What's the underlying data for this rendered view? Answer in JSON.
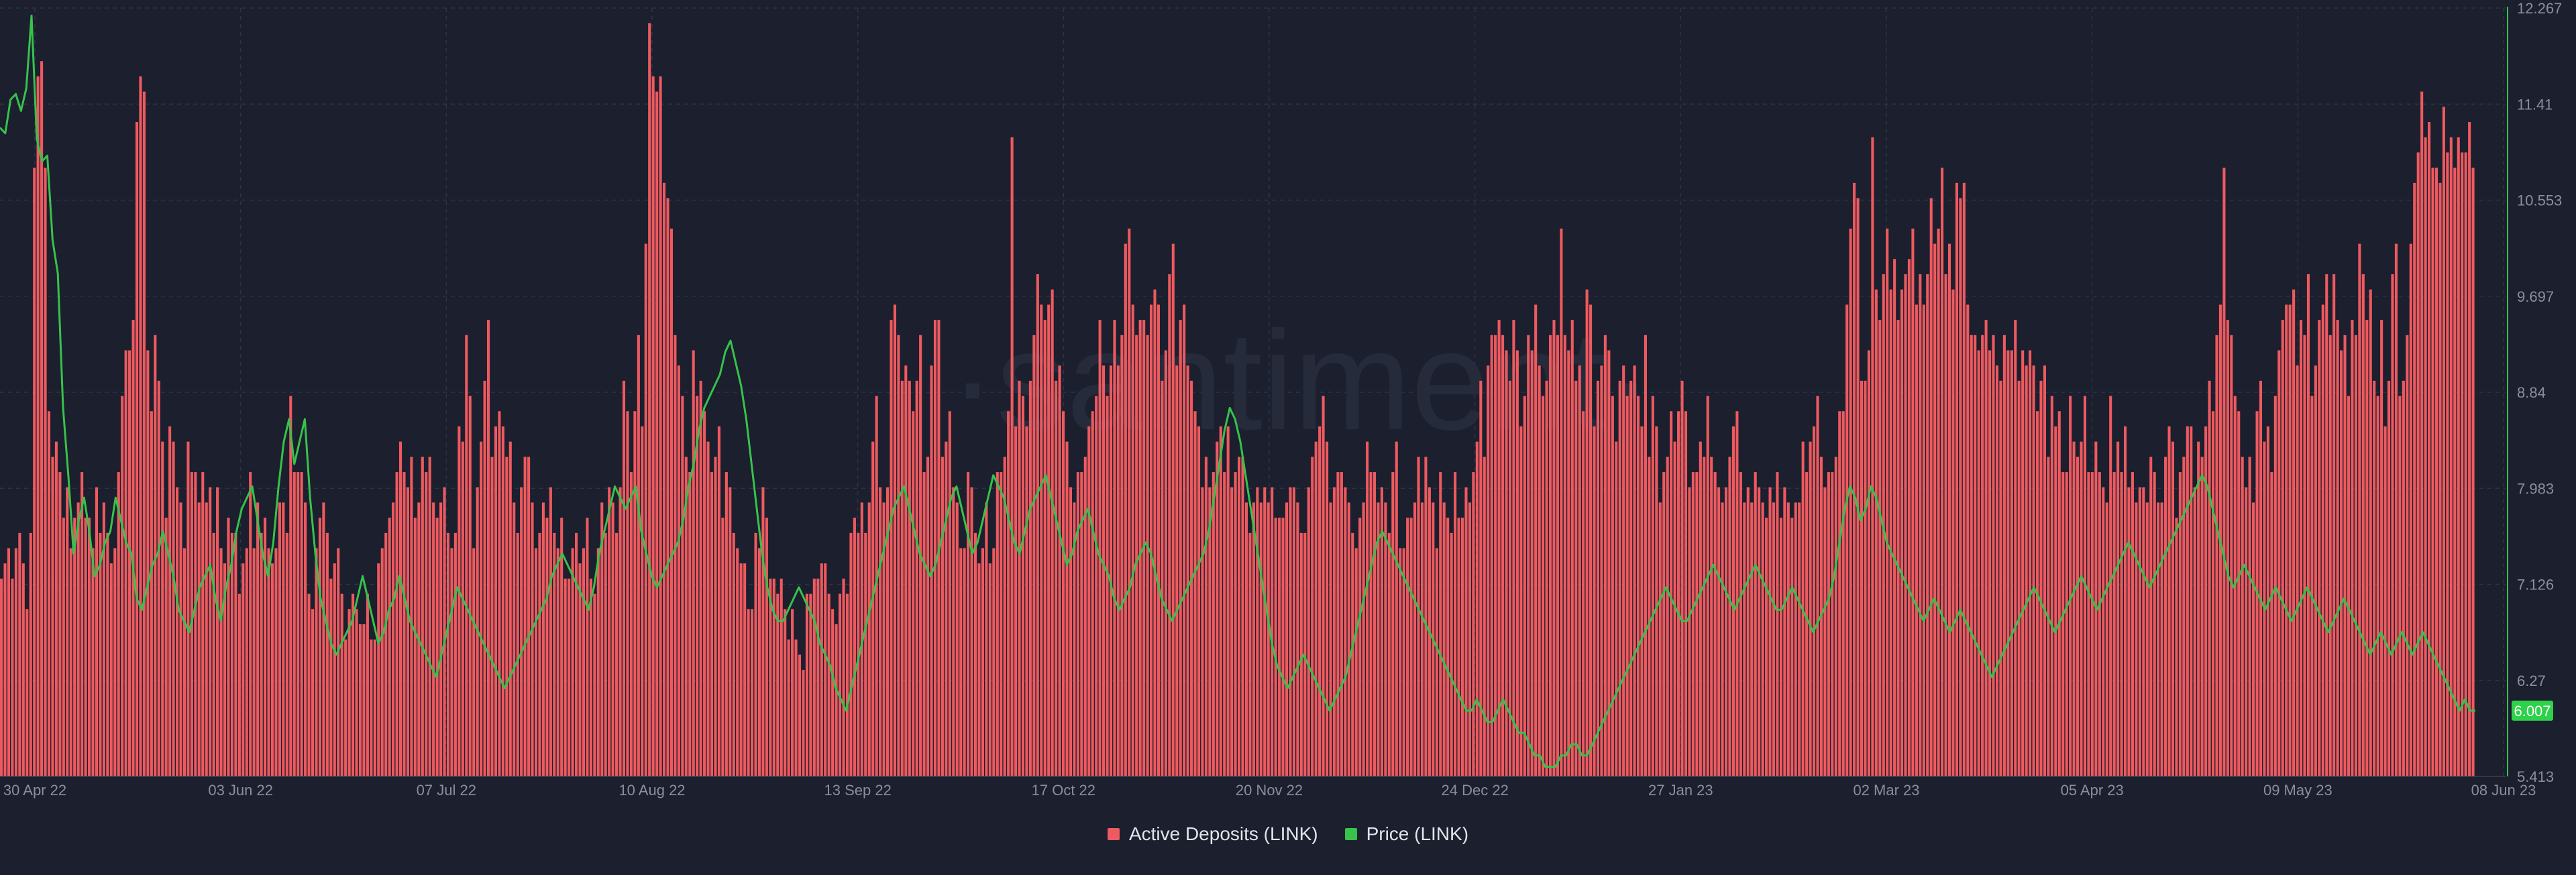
{
  "watermark": "·santiment·",
  "colors": {
    "background": "#1b1f2e",
    "grid": "#2e3345",
    "bars": "#ee5a5f",
    "price_line": "#37c24b",
    "axis_text": "#8a8f9f",
    "badge": "#2ed14a"
  },
  "chart_data": {
    "type": "bar",
    "x_tick_labels": [
      "30 Apr 22",
      "03 Jun 22",
      "07 Jul 22",
      "10 Aug 22",
      "13 Sep 22",
      "17 Oct 22",
      "20 Nov 22",
      "24 Dec 22",
      "27 Jan 23",
      "02 Mar 23",
      "05 Apr 23",
      "09 May 23",
      "08 Jun 23"
    ],
    "y_tick_labels": [
      "12.267",
      "11.41",
      "10.553",
      "9.697",
      "8.84",
      "7.983",
      "7.126",
      "6.27",
      "5.413"
    ],
    "y_right_range": [
      5.413,
      12.267
    ],
    "current_price_label": "6.007",
    "grid": true,
    "legend_position": "bottom-center",
    "series": [
      {
        "name": "Active Deposits (LINK)",
        "type": "bar",
        "axis": "hidden",
        "values": [
          26,
          28,
          30,
          26,
          30,
          32,
          28,
          22,
          32,
          80,
          92,
          94,
          80,
          48,
          42,
          44,
          40,
          34,
          38,
          30,
          34,
          36,
          40,
          34,
          34,
          30,
          38,
          32,
          36,
          32,
          28,
          30,
          40,
          50,
          56,
          56,
          60,
          86,
          92,
          90,
          56,
          48,
          58,
          52,
          44,
          34,
          46,
          44,
          38,
          36,
          30,
          44,
          40,
          40,
          36,
          40,
          36,
          38,
          32,
          38,
          30,
          28,
          34,
          32,
          32,
          24,
          28,
          30,
          40,
          30,
          36,
          32,
          34,
          30,
          28,
          30,
          36,
          36,
          32,
          50,
          40,
          40,
          40,
          36,
          24,
          22,
          30,
          34,
          36,
          32,
          26,
          28,
          30,
          24,
          18,
          22,
          24,
          22,
          20,
          20,
          24,
          18,
          18,
          28,
          30,
          32,
          34,
          36,
          40,
          44,
          40,
          38,
          42,
          34,
          36,
          42,
          40,
          42,
          36,
          34,
          36,
          38,
          32,
          30,
          32,
          46,
          44,
          58,
          50,
          30,
          38,
          44,
          52,
          60,
          42,
          46,
          48,
          46,
          42,
          44,
          36,
          32,
          38,
          42,
          42,
          36,
          30,
          32,
          36,
          34,
          38,
          32,
          30,
          34,
          26,
          26,
          30,
          32,
          28,
          30,
          34,
          26,
          24,
          30,
          36,
          32,
          38,
          36,
          32,
          38,
          52,
          48,
          40,
          48,
          58,
          46,
          70,
          99,
          92,
          90,
          92,
          78,
          76,
          72,
          58,
          54,
          50,
          42,
          40,
          56,
          50,
          52,
          48,
          44,
          40,
          42,
          46,
          34,
          40,
          38,
          32,
          30,
          28,
          28,
          22,
          22,
          32,
          30,
          38,
          34,
          26,
          26,
          24,
          26,
          22,
          18,
          22,
          18,
          16,
          14,
          24,
          24,
          26,
          26,
          28,
          28,
          24,
          22,
          20,
          24,
          26,
          24,
          32,
          34,
          32,
          36,
          32,
          36,
          44,
          50,
          38,
          36,
          38,
          60,
          62,
          58,
          52,
          54,
          52,
          48,
          52,
          58,
          40,
          42,
          54,
          60,
          60,
          42,
          44,
          48,
          38,
          36,
          30,
          30,
          40,
          38,
          32,
          28,
          30,
          36,
          28,
          30,
          40,
          40,
          42,
          48,
          84,
          46,
          52,
          50,
          46,
          52,
          58,
          66,
          62,
          60,
          62,
          64,
          52,
          54,
          48,
          44,
          38,
          36,
          40,
          40,
          42,
          46,
          48,
          50,
          60,
          54,
          50,
          54,
          60,
          54,
          58,
          70,
          72,
          62,
          58,
          60,
          60,
          58,
          62,
          64,
          62,
          52,
          56,
          66,
          70,
          54,
          60,
          62,
          54,
          52,
          48,
          46,
          38,
          42,
          38,
          40,
          44,
          46,
          40,
          46,
          38,
          40,
          42,
          42,
          36,
          32,
          36,
          38,
          36,
          38,
          36,
          38,
          34,
          34,
          34,
          36,
          38,
          38,
          36,
          32,
          32,
          38,
          42,
          44,
          46,
          50,
          44,
          36,
          38,
          40,
          40,
          38,
          36,
          32,
          30,
          34,
          36,
          44,
          40,
          40,
          36,
          38,
          36,
          32,
          40,
          44,
          30,
          30,
          34,
          34,
          36,
          42,
          36,
          42,
          38,
          36,
          30,
          40,
          36,
          34,
          32,
          40,
          34,
          34,
          38,
          36,
          40,
          44,
          52,
          42,
          54,
          58,
          58,
          60,
          58,
          56,
          52,
          60,
          56,
          46,
          50,
          58,
          56,
          62,
          54,
          50,
          52,
          58,
          60,
          58,
          72,
          58,
          56,
          60,
          52,
          54,
          48,
          64,
          62,
          46,
          52,
          54,
          58,
          56,
          50,
          44,
          52,
          54,
          50,
          52,
          54,
          50,
          46,
          58,
          42,
          50,
          46,
          36,
          40,
          42,
          48,
          44,
          48,
          52,
          48,
          38,
          40,
          40,
          44,
          42,
          50,
          42,
          40,
          38,
          36,
          38,
          42,
          46,
          48,
          40,
          36,
          38,
          36,
          40,
          38,
          36,
          34,
          38,
          36,
          40,
          34,
          38,
          36,
          34,
          36,
          36,
          44,
          40,
          44,
          46,
          50,
          42,
          38,
          40,
          40,
          42,
          48,
          48,
          62,
          72,
          78,
          76,
          52,
          52,
          56,
          84,
          64,
          60,
          66,
          72,
          64,
          68,
          60,
          64,
          66,
          68,
          72,
          62,
          66,
          62,
          66,
          76,
          70,
          72,
          80,
          66,
          70,
          64,
          78,
          76,
          78,
          62,
          58,
          58,
          56,
          58,
          60,
          56,
          58,
          54,
          52,
          58,
          56,
          56,
          60,
          52,
          56,
          54,
          56,
          54,
          48,
          52,
          54,
          42,
          50,
          46,
          48,
          40,
          40,
          50,
          44,
          42,
          44,
          50,
          40,
          40,
          44,
          40,
          38,
          36,
          50,
          40,
          44,
          40,
          46,
          38,
          40,
          36,
          38,
          38,
          36,
          42,
          40,
          36,
          36,
          42,
          46,
          44,
          34,
          40,
          42,
          46,
          46,
          38,
          44,
          42,
          46,
          52,
          48,
          58,
          62,
          80,
          60,
          58,
          50,
          48,
          42,
          38,
          42,
          36,
          48,
          52,
          44,
          46,
          40,
          50,
          56,
          60,
          62,
          62,
          64,
          54,
          60,
          58,
          66,
          50,
          54,
          60,
          62,
          66,
          58,
          66,
          60,
          56,
          58,
          50,
          60,
          58,
          70,
          66,
          60,
          64,
          52,
          50,
          60,
          46,
          52,
          66,
          70,
          50,
          52,
          58,
          70,
          78,
          82,
          90,
          84,
          86,
          80,
          80,
          78,
          88,
          82,
          84,
          80,
          84,
          82,
          82,
          86,
          80
        ]
      },
      {
        "name": "Price (LINK)",
        "type": "line",
        "axis": "right",
        "values": [
          11.2,
          11.15,
          11.45,
          11.5,
          11.35,
          11.55,
          12.2,
          11.1,
          10.9,
          10.95,
          10.2,
          9.9,
          8.7,
          8.1,
          7.4,
          7.7,
          7.9,
          7.6,
          7.2,
          7.3,
          7.5,
          7.6,
          7.9,
          7.7,
          7.5,
          7.4,
          7.0,
          6.9,
          7.1,
          7.3,
          7.4,
          7.6,
          7.4,
          7.2,
          6.9,
          6.8,
          6.7,
          6.9,
          7.1,
          7.2,
          7.3,
          7.0,
          6.8,
          7.1,
          7.3,
          7.6,
          7.8,
          7.9,
          8.0,
          7.7,
          7.4,
          7.2,
          7.5,
          8.0,
          8.4,
          8.6,
          8.2,
          8.4,
          8.6,
          7.9,
          7.4,
          7.0,
          6.8,
          6.6,
          6.5,
          6.6,
          6.7,
          6.8,
          7.0,
          7.2,
          7.0,
          6.8,
          6.6,
          6.7,
          6.9,
          7.0,
          7.2,
          7.0,
          6.8,
          6.7,
          6.6,
          6.5,
          6.4,
          6.3,
          6.5,
          6.7,
          6.9,
          7.1,
          7.0,
          6.9,
          6.8,
          6.7,
          6.6,
          6.5,
          6.4,
          6.3,
          6.2,
          6.3,
          6.4,
          6.5,
          6.6,
          6.7,
          6.8,
          6.9,
          7.0,
          7.2,
          7.3,
          7.4,
          7.3,
          7.2,
          7.1,
          7.0,
          6.9,
          7.1,
          7.4,
          7.6,
          7.8,
          8.0,
          7.9,
          7.8,
          7.9,
          8.0,
          7.6,
          7.4,
          7.2,
          7.1,
          7.2,
          7.3,
          7.4,
          7.5,
          7.7,
          8.0,
          8.2,
          8.5,
          8.7,
          8.8,
          8.9,
          9.0,
          9.2,
          9.3,
          9.1,
          8.9,
          8.6,
          8.2,
          7.8,
          7.4,
          7.1,
          6.9,
          6.8,
          6.8,
          6.9,
          7.0,
          7.1,
          7.0,
          6.9,
          6.8,
          6.6,
          6.5,
          6.4,
          6.2,
          6.1,
          6.0,
          6.2,
          6.4,
          6.6,
          6.8,
          7.0,
          7.2,
          7.4,
          7.6,
          7.8,
          7.9,
          8.0,
          7.8,
          7.6,
          7.4,
          7.3,
          7.2,
          7.3,
          7.5,
          7.7,
          7.9,
          8.0,
          7.8,
          7.6,
          7.4,
          7.5,
          7.7,
          7.9,
          8.1,
          8.0,
          7.9,
          7.7,
          7.5,
          7.4,
          7.6,
          7.8,
          7.9,
          8.0,
          8.1,
          7.9,
          7.7,
          7.5,
          7.3,
          7.4,
          7.6,
          7.7,
          7.8,
          7.6,
          7.4,
          7.3,
          7.2,
          7.0,
          6.9,
          7.0,
          7.1,
          7.3,
          7.4,
          7.5,
          7.4,
          7.2,
          7.0,
          6.9,
          6.8,
          6.9,
          7.0,
          7.1,
          7.2,
          7.3,
          7.4,
          7.6,
          7.9,
          8.2,
          8.5,
          8.7,
          8.6,
          8.4,
          8.1,
          7.8,
          7.5,
          7.2,
          6.9,
          6.6,
          6.4,
          6.3,
          6.2,
          6.3,
          6.4,
          6.5,
          6.4,
          6.3,
          6.2,
          6.1,
          6.0,
          6.1,
          6.2,
          6.3,
          6.5,
          6.7,
          6.9,
          7.1,
          7.3,
          7.5,
          7.6,
          7.5,
          7.4,
          7.3,
          7.2,
          7.1,
          7.0,
          6.9,
          6.8,
          6.7,
          6.6,
          6.5,
          6.4,
          6.3,
          6.2,
          6.1,
          6.0,
          6.0,
          6.1,
          6.0,
          5.9,
          5.9,
          6.0,
          6.1,
          6.0,
          5.9,
          5.8,
          5.8,
          5.7,
          5.6,
          5.6,
          5.5,
          5.5,
          5.5,
          5.6,
          5.6,
          5.7,
          5.7,
          5.6,
          5.6,
          5.7,
          5.8,
          5.9,
          6.0,
          6.1,
          6.2,
          6.3,
          6.4,
          6.5,
          6.6,
          6.7,
          6.8,
          6.9,
          7.0,
          7.1,
          7.0,
          6.9,
          6.8,
          6.8,
          6.9,
          7.0,
          7.1,
          7.2,
          7.3,
          7.2,
          7.1,
          7.0,
          6.9,
          7.0,
          7.1,
          7.2,
          7.3,
          7.2,
          7.1,
          7.0,
          6.9,
          6.9,
          7.0,
          7.1,
          7.0,
          6.9,
          6.8,
          6.7,
          6.8,
          6.9,
          7.0,
          7.2,
          7.5,
          7.8,
          8.0,
          7.9,
          7.7,
          7.8,
          8.0,
          7.9,
          7.7,
          7.5,
          7.4,
          7.3,
          7.2,
          7.1,
          7.0,
          6.9,
          6.8,
          6.9,
          7.0,
          6.9,
          6.8,
          6.7,
          6.8,
          6.9,
          6.8,
          6.7,
          6.6,
          6.5,
          6.4,
          6.3,
          6.4,
          6.5,
          6.6,
          6.7,
          6.8,
          6.9,
          7.0,
          7.1,
          7.0,
          6.9,
          6.8,
          6.7,
          6.8,
          6.9,
          7.0,
          7.1,
          7.2,
          7.1,
          7.0,
          6.9,
          7.0,
          7.1,
          7.2,
          7.3,
          7.4,
          7.5,
          7.4,
          7.3,
          7.2,
          7.1,
          7.2,
          7.3,
          7.4,
          7.5,
          7.6,
          7.7,
          7.8,
          7.9,
          8.0,
          8.1,
          8.0,
          7.8,
          7.6,
          7.4,
          7.2,
          7.1,
          7.2,
          7.3,
          7.2,
          7.1,
          7.0,
          6.9,
          7.0,
          7.1,
          7.0,
          6.9,
          6.8,
          6.9,
          7.0,
          7.1,
          7.0,
          6.9,
          6.8,
          6.7,
          6.8,
          6.9,
          7.0,
          6.9,
          6.8,
          6.7,
          6.6,
          6.5,
          6.6,
          6.7,
          6.6,
          6.5,
          6.6,
          6.7,
          6.6,
          6.5,
          6.6,
          6.7,
          6.6,
          6.5,
          6.4,
          6.3,
          6.2,
          6.1,
          6.0,
          6.1,
          6.0,
          6.0
        ]
      }
    ]
  }
}
